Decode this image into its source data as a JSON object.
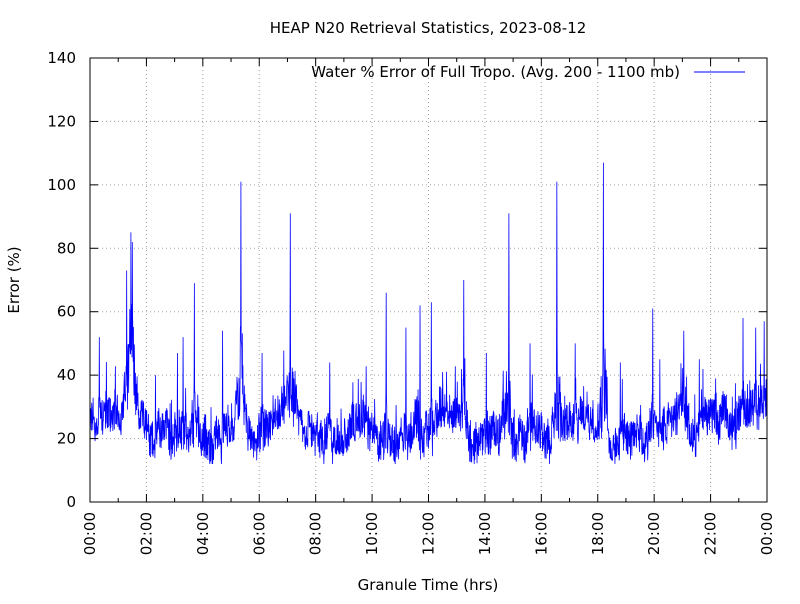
{
  "chart_data": {
    "type": "line",
    "title": "HEAP N20 Retrieval Statistics, 2023-08-12",
    "xlabel": "Granule Time (hrs)",
    "ylabel": "Error (%)",
    "xlim": [
      0,
      24
    ],
    "ylim": [
      0,
      140
    ],
    "x_ticks": [
      0,
      2,
      4,
      6,
      8,
      10,
      12,
      14,
      16,
      18,
      20,
      22,
      24
    ],
    "x_tick_labels": [
      "00:00",
      "02:00",
      "04:00",
      "06:00",
      "08:00",
      "10:00",
      "12:00",
      "14:00",
      "16:00",
      "18:00",
      "20:00",
      "22:00",
      "00:00"
    ],
    "y_ticks": [
      0,
      20,
      40,
      60,
      80,
      100,
      120,
      140
    ],
    "y_tick_labels": [
      "0",
      "20",
      "40",
      "60",
      "80",
      "100",
      "120",
      "140"
    ],
    "grid": true,
    "legend_position": "top-right",
    "series": [
      {
        "name": "Water % Error of Full Tropo. (Avg. 200 - 1100 mb)",
        "color": "#0000ff",
        "baseline_range": [
          13,
          35
        ],
        "peaks": [
          {
            "x": 0.33,
            "y": 52
          },
          {
            "x": 1.3,
            "y": 73
          },
          {
            "x": 1.45,
            "y": 85
          },
          {
            "x": 1.5,
            "y": 82
          },
          {
            "x": 3.1,
            "y": 47
          },
          {
            "x": 3.3,
            "y": 52
          },
          {
            "x": 3.7,
            "y": 69
          },
          {
            "x": 4.7,
            "y": 54
          },
          {
            "x": 5.35,
            "y": 101
          },
          {
            "x": 6.1,
            "y": 47
          },
          {
            "x": 7.1,
            "y": 91
          },
          {
            "x": 8.5,
            "y": 44
          },
          {
            "x": 10.5,
            "y": 66
          },
          {
            "x": 11.2,
            "y": 55
          },
          {
            "x": 11.7,
            "y": 62
          },
          {
            "x": 12.1,
            "y": 63
          },
          {
            "x": 12.5,
            "y": 41
          },
          {
            "x": 13.25,
            "y": 70
          },
          {
            "x": 14.05,
            "y": 47
          },
          {
            "x": 14.85,
            "y": 91
          },
          {
            "x": 15.6,
            "y": 50
          },
          {
            "x": 16.55,
            "y": 101
          },
          {
            "x": 17.2,
            "y": 50
          },
          {
            "x": 18.2,
            "y": 107
          },
          {
            "x": 18.8,
            "y": 44
          },
          {
            "x": 19.95,
            "y": 61
          },
          {
            "x": 20.2,
            "y": 45
          },
          {
            "x": 21.05,
            "y": 54
          },
          {
            "x": 21.6,
            "y": 45
          },
          {
            "x": 23.15,
            "y": 58
          },
          {
            "x": 23.6,
            "y": 55
          },
          {
            "x": 23.9,
            "y": 57
          }
        ]
      }
    ]
  }
}
